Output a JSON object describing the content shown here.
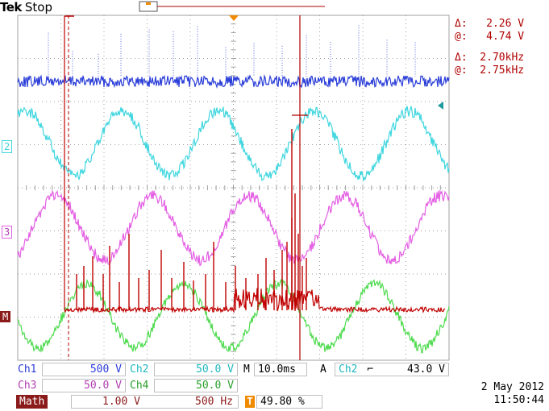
{
  "header": {
    "brand": "Tek",
    "run_state": "Stop"
  },
  "cursor_readout": {
    "voltage_delta": "Δ:   2.26 V",
    "voltage_at": "@:   4.74 V",
    "freq_delta": "Δ:  2.70kHz",
    "freq_at": "@:  2.75kHz"
  },
  "channel_markers": {
    "ch2": "2",
    "ch3": "3",
    "math": "M"
  },
  "bottom_panel": {
    "ch1_label": "Ch1",
    "ch1_scale": "500 V",
    "ch2_label": "Ch2",
    "ch2_scale": "50.0 V",
    "ch3_label": "Ch3",
    "ch3_scale": "50.0 V",
    "ch4_label": "Ch4",
    "ch4_scale": "50.0 V",
    "timebase_label": "M",
    "timebase": "10.0ms",
    "trigger_label": "A",
    "trigger_source": "Ch2",
    "trigger_slope": "⌐",
    "trigger_level": "43.0 V",
    "math_label": "Math",
    "math_scale": "1.00 V",
    "math_freq": "500 Hz",
    "trigger_pos_icon": "T",
    "trigger_position": "49.80 %",
    "date": "2 May 2012",
    "time": "11:50:44"
  },
  "colors": {
    "ch1": "#2b3ed8",
    "ch2": "#3fd6df",
    "ch3": "#e45fe4",
    "ch4": "#4fdb4f",
    "math": "#c00000",
    "cursor": "#b00000",
    "grid": "#a0a0a0",
    "trigger": "#f08a00"
  }
}
